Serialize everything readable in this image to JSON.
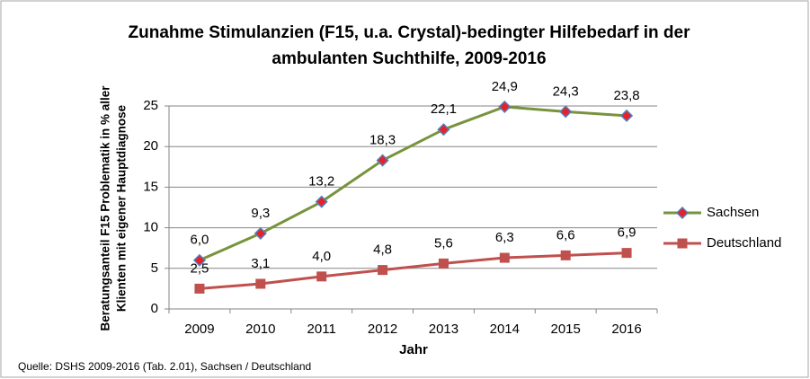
{
  "chart_data": {
    "type": "line",
    "title": [
      "Zunahme Stimulanzien (F15, u.a. Crystal)-bedingter Hilfebedarf in der",
      "ambulanten Suchthilfe, 2009-2016"
    ],
    "y_label": [
      "Beratungsanteil F15 Problematik in % aller",
      "Klienten mit eigener Hauptdiagnose"
    ],
    "x_label": "Jahr",
    "source": "Quelle: DSHS 2009-2016 (Tab. 2.01), Sachsen / Deutschland",
    "categories": [
      "2009",
      "2010",
      "2011",
      "2012",
      "2013",
      "2014",
      "2015",
      "2016"
    ],
    "series": [
      {
        "name": "Sachsen",
        "color": "#77933c",
        "marker": "diamond",
        "marker_color": "#e8202a",
        "marker_edge": "#4f81bd",
        "values": [
          6.0,
          9.3,
          13.2,
          18.3,
          22.1,
          24.9,
          24.3,
          23.8
        ],
        "value_labels": [
          "6,0",
          "9,3",
          "13,2",
          "18,3",
          "22,1",
          "24,9",
          "24,3",
          "23,8"
        ]
      },
      {
        "name": "Deutschland",
        "color": "#c0504d",
        "marker": "square",
        "marker_color": "#c0504d",
        "marker_edge": "#c0504d",
        "values": [
          2.5,
          3.1,
          4.0,
          4.8,
          5.6,
          6.3,
          6.6,
          6.9
        ],
        "value_labels": [
          "2,5",
          "3,1",
          "4,0",
          "4,8",
          "5,6",
          "6,3",
          "6,6",
          "6,9"
        ]
      }
    ],
    "ylim": [
      0,
      25
    ],
    "yticks": [
      0,
      5,
      10,
      15,
      20,
      25
    ],
    "grid": true,
    "legend": "right"
  }
}
